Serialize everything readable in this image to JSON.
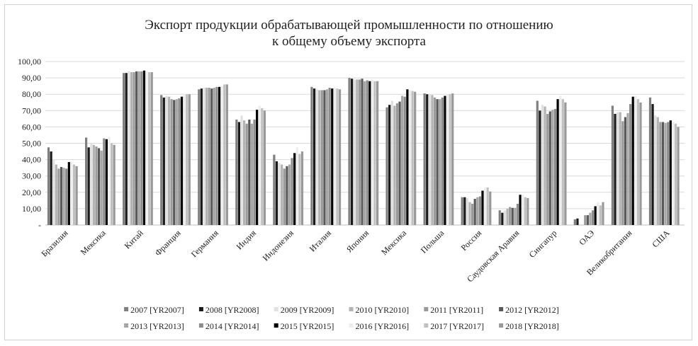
{
  "chart_data": {
    "type": "bar",
    "title": [
      "Экспорт продукции обрабатывающей промышленности по отношению",
      "к общему объему экспорта"
    ],
    "xlabel": "",
    "ylabel": "",
    "ylim": [
      0,
      100
    ],
    "yticks": [
      0,
      10,
      20,
      30,
      40,
      50,
      60,
      70,
      80,
      90,
      100
    ],
    "ytick_labels": [
      "-",
      "10,00",
      "20,00",
      "30,00",
      "40,00",
      "50,00",
      "60,00",
      "70,00",
      "80,00",
      "90,00",
      "100,00"
    ],
    "grid": true,
    "legend_position": "bottom",
    "categories": [
      "Бразилия",
      "Мексика",
      "Китай",
      "Франция",
      "Германия",
      "Индия",
      "Индонезия",
      "Италия",
      "Япония",
      "Мексика",
      "Польша",
      "Россия",
      "Саудовская Аравия",
      "Сингапур",
      "ОАЭ",
      "Великобритания",
      "США"
    ],
    "series": [
      {
        "name": "2007 [YR2007]",
        "color": "#7f7f7f",
        "values": [
          47.5,
          53.5,
          93.0,
          79.5,
          83.0,
          64.5,
          43.0,
          84.5,
          90.0,
          72.0,
          80.5,
          17.0,
          9.0,
          76.0,
          3.5,
          73.0,
          78.0
        ]
      },
      {
        "name": "2008 [YR2008]",
        "color": "#1a1a1a",
        "values": [
          45.0,
          47.5,
          93.0,
          78.0,
          83.5,
          63.0,
          39.0,
          83.5,
          89.5,
          73.5,
          80.0,
          17.0,
          7.5,
          70.0,
          4.0,
          68.0,
          74.0
        ]
      },
      {
        "name": "2009 [YR2009]",
        "color": "#e0e0e0",
        "values": [
          40.0,
          50.0,
          94.0,
          79.0,
          84.0,
          67.0,
          38.0,
          83.0,
          89.0,
          76.0,
          80.0,
          16.5,
          9.0,
          73.5,
          0,
          69.0,
          67.0
        ]
      },
      {
        "name": "2010 [YR2010]",
        "color": "#b3b3b3",
        "values": [
          37.0,
          49.0,
          93.5,
          78.5,
          84.0,
          64.0,
          37.0,
          82.5,
          89.0,
          73.0,
          79.5,
          14.0,
          10.0,
          72.5,
          0,
          69.0,
          66.0
        ]
      },
      {
        "name": "2011 [YR2011]",
        "color": "#9a9a9a",
        "values": [
          34.5,
          48.0,
          93.5,
          77.0,
          84.0,
          62.0,
          34.5,
          82.5,
          89.0,
          74.5,
          78.0,
          13.0,
          11.0,
          68.0,
          6.0,
          63.5,
          63.0
        ]
      },
      {
        "name": "2012 [YR2012]",
        "color": "#595959",
        "values": [
          35.5,
          47.0,
          94.0,
          76.5,
          83.5,
          64.5,
          36.0,
          82.5,
          89.5,
          75.5,
          77.0,
          16.0,
          10.5,
          69.5,
          6.0,
          66.0,
          63.0
        ]
      },
      {
        "name": "2013 [YR2013]",
        "color": "#a6a6a6",
        "values": [
          35.0,
          45.5,
          94.0,
          77.0,
          84.0,
          62.0,
          37.0,
          83.0,
          88.0,
          79.0,
          77.0,
          17.0,
          10.5,
          70.5,
          7.5,
          68.5,
          62.5
        ]
      },
      {
        "name": "2014 [YR2014]",
        "color": "#8c8c8c",
        "values": [
          34.5,
          53.0,
          94.0,
          77.5,
          84.5,
          64.5,
          41.0,
          84.0,
          88.5,
          78.5,
          78.0,
          17.5,
          13.0,
          71.0,
          9.0,
          74.0,
          63.0
        ]
      },
      {
        "name": "2015 [YR2015]",
        "color": "#000000",
        "values": [
          38.5,
          52.5,
          94.5,
          78.5,
          84.5,
          70.5,
          44.0,
          83.5,
          88.0,
          83.0,
          79.0,
          21.0,
          18.5,
          77.0,
          11.5,
          78.5,
          64.0
        ]
      },
      {
        "name": "2016 [YR2016]",
        "color": "#ededed",
        "values": [
          39.0,
          54.0,
          94.0,
          80.0,
          85.0,
          73.0,
          47.5,
          84.0,
          89.0,
          82.5,
          80.0,
          23.0,
          18.5,
          79.0,
          14.0,
          79.0,
          63.0
        ]
      },
      {
        "name": "2017 [YR2017]",
        "color": "#c0c0c0",
        "values": [
          37.0,
          50.0,
          93.5,
          80.0,
          86.0,
          71.5,
          43.5,
          83.5,
          88.0,
          82.0,
          80.0,
          23.0,
          17.0,
          77.0,
          12.0,
          77.0,
          62.0
        ]
      },
      {
        "name": "2018 [YR2018]",
        "color": "#999999",
        "values": [
          36.0,
          49.0,
          93.5,
          80.0,
          86.0,
          70.0,
          45.0,
          83.0,
          88.0,
          81.5,
          80.5,
          20.5,
          16.5,
          75.0,
          14.0,
          75.0,
          60.0
        ]
      }
    ]
  }
}
